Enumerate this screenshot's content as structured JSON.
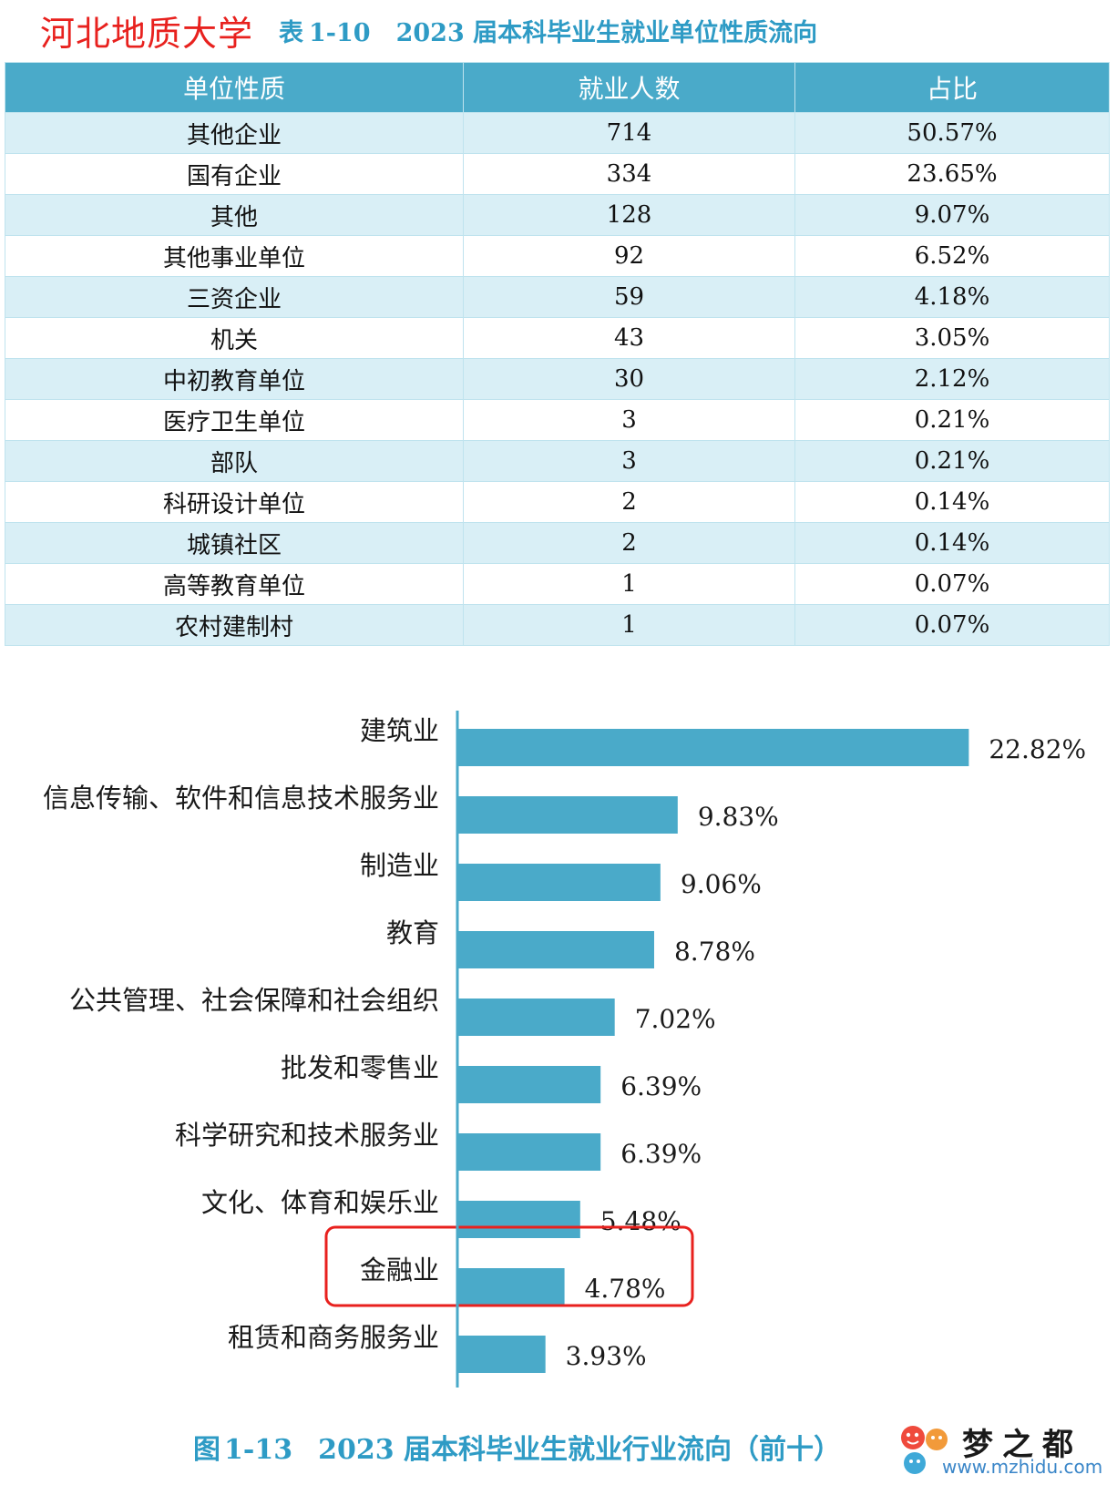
{
  "header": {
    "brand": "河北地质大学",
    "table_caption_prefix": "表",
    "table_caption_number": "1-10",
    "table_caption_title": "2023 届本科毕业生就业单位性质流向"
  },
  "unit_table": {
    "columns": [
      "单位性质",
      "就业人数",
      "占比"
    ],
    "rows": [
      [
        "其他企业",
        "714",
        "50.57%"
      ],
      [
        "国有企业",
        "334",
        "23.65%"
      ],
      [
        "其他",
        "128",
        "9.07%"
      ],
      [
        "其他事业单位",
        "92",
        "6.52%"
      ],
      [
        "三资企业",
        "59",
        "4.18%"
      ],
      [
        "机关",
        "43",
        "3.05%"
      ],
      [
        "中初教育单位",
        "30",
        "2.12%"
      ],
      [
        "医疗卫生单位",
        "3",
        "0.21%"
      ],
      [
        "部队",
        "3",
        "0.21%"
      ],
      [
        "科研设计单位",
        "2",
        "0.14%"
      ],
      [
        "城镇社区",
        "2",
        "0.14%"
      ],
      [
        "高等教育单位",
        "1",
        "0.07%"
      ],
      [
        "农村建制村",
        "1",
        "0.07%"
      ]
    ]
  },
  "chart_data": {
    "type": "bar",
    "orientation": "horizontal",
    "title": "",
    "categories": [
      "建筑业",
      "信息传输、软件和信息技术服务业",
      "制造业",
      "教育",
      "公共管理、社会保障和社会组织",
      "批发和零售业",
      "科学研究和技术服务业",
      "文化、体育和娱乐业",
      "金融业",
      "租赁和商务服务业"
    ],
    "values": [
      22.82,
      9.83,
      9.06,
      8.78,
      7.02,
      6.39,
      6.39,
      5.48,
      4.78,
      3.93
    ],
    "value_labels": [
      "22.82%",
      "9.83%",
      "9.06%",
      "8.78%",
      "7.02%",
      "6.39%",
      "6.39%",
      "5.48%",
      "4.78%",
      "3.93%"
    ],
    "highlighted_category": "金融业",
    "xlabel": "",
    "ylabel": "",
    "grid": false,
    "legend": "none",
    "colors": {
      "bar": "#4aaac9",
      "axis": "#4aaac9",
      "highlight_box": "#e8211e"
    }
  },
  "figure_caption": {
    "prefix": "图",
    "number": "1-13",
    "title": "2023 届本科毕业生就业行业流向（前十）"
  },
  "watermark": {
    "name": "梦之都",
    "url": "www.mzhidu.com",
    "icon": "bubble-mascot-icon"
  },
  "colors": {
    "brand_red": "#e8211e",
    "caption_blue": "#2e9bc5",
    "header_fill": "#4aaac9",
    "stripe_fill": "#d9eff6"
  }
}
